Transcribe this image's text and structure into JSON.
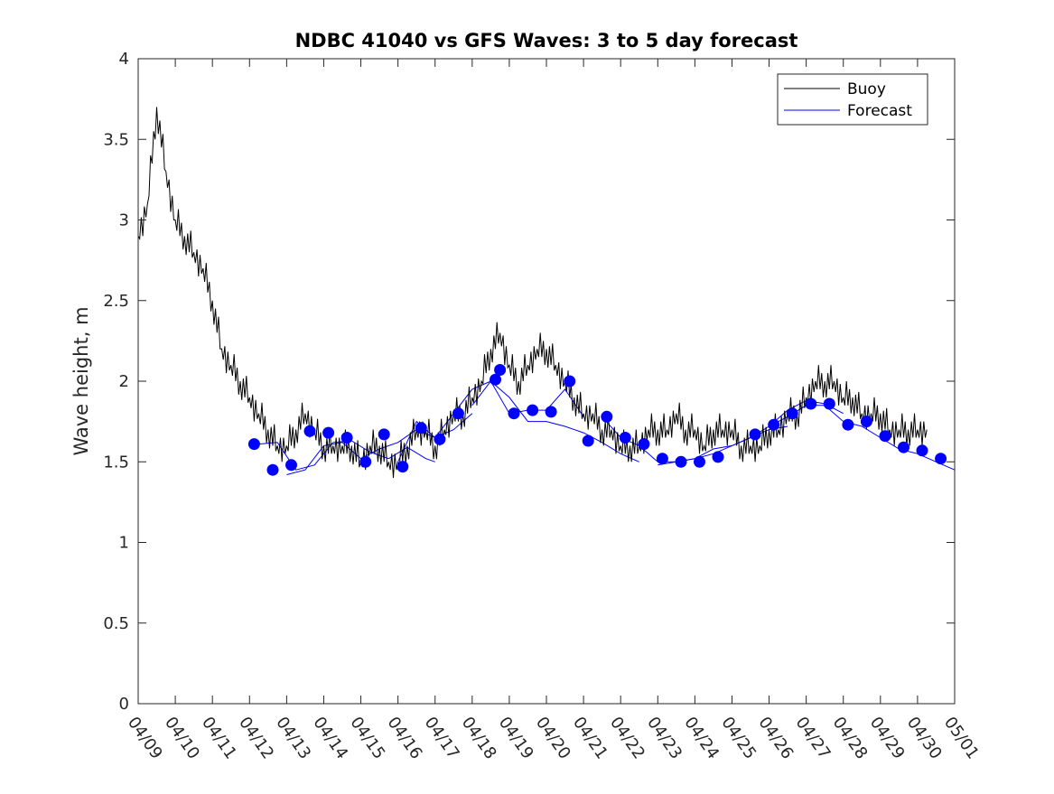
{
  "chart_data": {
    "type": "line",
    "title": "NDBC 41040 vs GFS Waves: 3 to 5 day forecast",
    "xlabel": "",
    "ylabel": "Wave height, m",
    "ylim": [
      0,
      4
    ],
    "yticks": [
      0,
      0.5,
      1,
      1.5,
      2,
      2.5,
      3,
      3.5,
      4
    ],
    "ytick_labels": [
      "0",
      "0.5",
      "1",
      "1.5",
      "2",
      "2.5",
      "3",
      "3.5",
      "4"
    ],
    "xlim": [
      "2025-04-09",
      "2025-05-01"
    ],
    "x_unit": "date",
    "xtick_labels": [
      "04/09",
      "04/10",
      "04/11",
      "04/12",
      "04/13",
      "04/14",
      "04/15",
      "04/16",
      "04/17",
      "04/18",
      "04/19",
      "04/20",
      "04/21",
      "04/22",
      "04/23",
      "04/24",
      "04/25",
      "04/26",
      "04/27",
      "04/28",
      "04/29",
      "04/30",
      "05/01"
    ],
    "grid": false,
    "legend": {
      "position": "top-right",
      "entries": [
        "Buoy",
        "Forecast"
      ]
    },
    "colors": {
      "buoy": "#000000",
      "forecast": "#0000ff",
      "markers": "#0000ff"
    },
    "series": [
      {
        "name": "Buoy",
        "x": [
          "04/09 00:00",
          "04/09 06:00",
          "04/09 12:00",
          "04/09 18:00",
          "04/10 00:00",
          "04/10 06:00",
          "04/10 12:00",
          "04/10 18:00",
          "04/11 00:00",
          "04/11 06:00",
          "04/11 12:00",
          "04/11 18:00",
          "04/12 00:00",
          "04/12 06:00",
          "04/12 12:00",
          "04/12 18:00",
          "04/13 00:00",
          "04/13 06:00",
          "04/13 12:00",
          "04/13 18:00",
          "04/14 00:00",
          "04/14 06:00",
          "04/14 12:00",
          "04/14 18:00",
          "04/15 00:00",
          "04/15 06:00",
          "04/15 12:00",
          "04/15 18:00",
          "04/16 00:00",
          "04/16 06:00",
          "04/16 12:00",
          "04/16 18:00",
          "04/17 00:00",
          "04/17 06:00",
          "04/17 12:00",
          "04/17 18:00",
          "04/18 00:00",
          "04/18 06:00",
          "04/18 12:00",
          "04/18 18:00",
          "04/19 00:00",
          "04/19 06:00",
          "04/19 12:00",
          "04/19 18:00",
          "04/20 00:00",
          "04/20 06:00",
          "04/20 12:00",
          "04/20 18:00",
          "04/21 00:00",
          "04/21 06:00",
          "04/21 12:00",
          "04/21 18:00",
          "04/22 00:00",
          "04/22 06:00",
          "04/22 12:00",
          "04/22 18:00",
          "04/23 00:00",
          "04/23 06:00",
          "04/23 12:00",
          "04/23 18:00",
          "04/24 00:00",
          "04/24 06:00",
          "04/24 12:00",
          "04/24 18:00",
          "04/25 00:00",
          "04/25 06:00",
          "04/25 12:00",
          "04/25 18:00",
          "04/26 00:00",
          "04/26 06:00",
          "04/26 12:00",
          "04/26 18:00",
          "04/27 00:00",
          "04/27 06:00",
          "04/27 12:00",
          "04/27 18:00",
          "04/28 00:00",
          "04/28 06:00",
          "04/28 12:00",
          "04/28 18:00",
          "04/29 00:00",
          "04/29 06:00",
          "04/29 12:00",
          "04/29 18:00",
          "04/30 00:00",
          "04/30 06:00"
        ],
        "values": [
          2.9,
          3.1,
          3.7,
          3.3,
          3.0,
          2.9,
          2.8,
          2.7,
          2.5,
          2.2,
          2.1,
          2.0,
          1.9,
          1.8,
          1.7,
          1.6,
          1.6,
          1.7,
          1.8,
          1.7,
          1.6,
          1.6,
          1.6,
          1.6,
          1.5,
          1.6,
          1.6,
          1.5,
          1.5,
          1.6,
          1.7,
          1.7,
          1.6,
          1.7,
          1.8,
          1.8,
          1.9,
          2.0,
          2.2,
          2.3,
          2.1,
          2.0,
          2.1,
          2.2,
          2.2,
          2.1,
          2.0,
          1.9,
          1.8,
          1.8,
          1.7,
          1.7,
          1.6,
          1.6,
          1.6,
          1.7,
          1.7,
          1.7,
          1.8,
          1.7,
          1.7,
          1.6,
          1.7,
          1.7,
          1.7,
          1.6,
          1.6,
          1.6,
          1.7,
          1.7,
          1.8,
          1.8,
          1.9,
          2.0,
          2.0,
          2.0,
          1.9,
          1.9,
          1.8,
          1.8,
          1.8,
          1.7,
          1.7,
          1.7,
          1.7,
          1.7
        ]
      },
      {
        "name": "Forecast",
        "runs": [
          {
            "x": [
              "04/12 06:00",
              "04/12 18:00",
              "04/13 06:00",
              "04/13 18:00",
              "04/14 06:00",
              "04/14 18:00",
              "04/15 06:00",
              "04/15 18:00",
              "04/16 06:00",
              "04/16 18:00",
              "04/17 00:00"
            ],
            "values": [
              1.61,
              1.62,
              1.45,
              1.48,
              1.62,
              1.63,
              1.56,
              1.52,
              1.59,
              1.52,
              1.5
            ]
          },
          {
            "x": [
              "04/13 00:00",
              "04/13 12:00",
              "04/14 00:00",
              "04/14 12:00",
              "04/15 00:00",
              "04/15 12:00",
              "04/16 00:00",
              "04/16 12:00",
              "04/17 00:00",
              "04/17 12:00",
              "04/18 00:00"
            ],
            "values": [
              1.42,
              1.45,
              1.6,
              1.62,
              1.52,
              1.58,
              1.62,
              1.7,
              1.65,
              1.7,
              1.8
            ]
          },
          {
            "x": [
              "04/16 00:00",
              "04/16 12:00",
              "04/17 00:00",
              "04/17 12:00",
              "04/18 00:00",
              "04/18 12:00",
              "04/19 00:00",
              "04/19 12:00",
              "04/20 00:00",
              "04/20 12:00",
              "04/21 00:00"
            ],
            "values": [
              1.5,
              1.75,
              1.65,
              1.8,
              1.95,
              2.0,
              1.8,
              1.82,
              1.82,
              1.95,
              1.78
            ]
          },
          {
            "x": [
              "04/18 00:00",
              "04/18 12:00",
              "04/19 00:00",
              "04/19 12:00",
              "04/20 00:00",
              "04/20 12:00",
              "04/21 00:00",
              "04/21 12:00",
              "04/22 00:00",
              "04/22 12:00"
            ],
            "values": [
              1.85,
              2.0,
              1.9,
              1.75,
              1.75,
              1.72,
              1.68,
              1.62,
              1.55,
              1.5
            ]
          },
          {
            "x": [
              "04/21 12:00",
              "04/22 00:00",
              "04/22 12:00",
              "04/23 00:00",
              "04/23 12:00",
              "04/24 00:00",
              "04/24 12:00",
              "04/25 00:00",
              "04/25 12:00",
              "04/26 00:00",
              "04/26 12:00"
            ],
            "values": [
              1.78,
              1.65,
              1.6,
              1.5,
              1.5,
              1.52,
              1.55,
              1.6,
              1.65,
              1.7,
              1.72
            ]
          },
          {
            "x": [
              "04/23 00:00",
              "04/23 12:00",
              "04/24 00:00",
              "04/24 12:00",
              "04/25 00:00",
              "04/25 12:00",
              "04/26 00:00",
              "04/26 12:00",
              "04/27 00:00",
              "04/27 12:00",
              "04/28 00:00"
            ],
            "values": [
              1.48,
              1.5,
              1.52,
              1.58,
              1.6,
              1.65,
              1.72,
              1.82,
              1.88,
              1.86,
              1.8
            ]
          },
          {
            "x": [
              "04/26 00:00",
              "04/26 12:00",
              "04/27 00:00",
              "04/27 12:00",
              "04/28 00:00",
              "04/28 12:00",
              "04/29 00:00",
              "04/29 12:00",
              "04/30 00:00",
              "04/30 12:00",
              "05/01 00:00"
            ],
            "values": [
              1.72,
              1.78,
              1.85,
              1.85,
              1.75,
              1.72,
              1.65,
              1.58,
              1.55,
              1.5,
              1.45
            ]
          }
        ]
      }
    ],
    "markers": {
      "x": [
        "04/12 03:00",
        "04/12 15:00",
        "04/13 03:00",
        "04/13 15:00",
        "04/14 03:00",
        "04/14 15:00",
        "04/15 03:00",
        "04/15 15:00",
        "04/16 03:00",
        "04/16 15:00",
        "04/17 03:00",
        "04/17 15:00",
        "04/18 15:00",
        "04/18 18:00",
        "04/19 03:00",
        "04/19 15:00",
        "04/20 03:00",
        "04/20 15:00",
        "04/21 03:00",
        "04/21 15:00",
        "04/22 03:00",
        "04/22 15:00",
        "04/23 03:00",
        "04/23 15:00",
        "04/24 03:00",
        "04/24 15:00",
        "04/25 15:00",
        "04/26 03:00",
        "04/26 15:00",
        "04/27 03:00",
        "04/27 15:00",
        "04/28 03:00",
        "04/28 15:00",
        "04/29 03:00",
        "04/29 15:00",
        "04/30 03:00",
        "04/30 15:00"
      ],
      "values": [
        1.61,
        1.45,
        1.48,
        1.69,
        1.68,
        1.65,
        1.5,
        1.67,
        1.47,
        1.71,
        1.64,
        1.8,
        2.01,
        2.07,
        1.8,
        1.82,
        1.81,
        2.0,
        1.63,
        1.78,
        1.65,
        1.61,
        1.52,
        1.5,
        1.5,
        1.53,
        1.67,
        1.73,
        1.8,
        1.86,
        1.86,
        1.73,
        1.75,
        1.66,
        1.59,
        1.57,
        1.52
      ]
    }
  }
}
